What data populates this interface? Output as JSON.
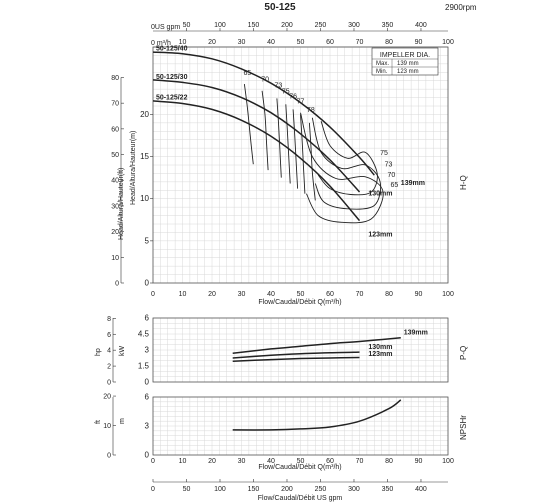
{
  "chart_data": {
    "type": "line",
    "title": "50-125",
    "speed": "2900rpm",
    "flow_axis": {
      "label": "Flow/Caudal/Débit Q(m³/h)",
      "unit_label": "0  m³/h",
      "ticks": [
        "0",
        "10",
        "20",
        "30",
        "40",
        "50",
        "60",
        "70",
        "80",
        "90",
        "100"
      ],
      "range": [
        0,
        100
      ]
    },
    "usgpm_axis": {
      "label": "Flow/Caudal/Débit  US gpm",
      "unit_label": "0US gpm",
      "ticks": [
        "50",
        "100",
        "150",
        "200",
        "250",
        "300",
        "350",
        "400"
      ]
    },
    "hq": {
      "side_label": "H-Q",
      "ylabel_m": "Head/Altura/Hauteur(m)",
      "ylabel_ft": "Head/Altura/Hauteur(ft)",
      "m_ticks": [
        "0",
        "5",
        "10",
        "15",
        "20"
      ],
      "ft_ticks": [
        "0",
        "10",
        "20",
        "30",
        "40",
        "50",
        "60",
        "70",
        "80"
      ],
      "ylim_m": [
        0,
        25
      ],
      "series": [
        {
          "name": "50-125/40",
          "diameter": "139mm",
          "x": [
            0,
            10,
            20,
            30,
            40,
            50,
            60,
            70,
            75
          ],
          "y": [
            27.4,
            27.2,
            26.6,
            25.4,
            23.7,
            21.4,
            18.5,
            14.9,
            12.8
          ]
        },
        {
          "name": "50-125/30",
          "diameter": "130mm",
          "x": [
            0,
            10,
            20,
            30,
            40,
            50,
            60,
            70
          ],
          "y": [
            24.1,
            23.8,
            23.2,
            22.0,
            20.2,
            17.7,
            14.6,
            10.8
          ]
        },
        {
          "name": "50-125/22",
          "diameter": "123mm",
          "x": [
            0,
            10,
            20,
            30,
            40,
            50,
            60,
            70
          ],
          "y": [
            21.6,
            21.3,
            20.6,
            19.3,
            17.4,
            14.8,
            11.5,
            7.4
          ]
        }
      ],
      "efficiency_labels_left": [
        "65",
        "70",
        "73",
        "75",
        "76",
        "77",
        "78"
      ],
      "efficiency_labels_right": [
        "75",
        "73",
        "70",
        "65"
      ],
      "impeller_box": {
        "title": "IMPELLER DIA.",
        "max_label": "Max.",
        "max_value": "139 mm",
        "min_label": "Min.",
        "min_value": "123 mm"
      }
    },
    "pq": {
      "side_label": "P-Q",
      "ylabel_hp": "hp",
      "ylabel_kw": "kW",
      "hp_ticks": [
        "0",
        "2",
        "4",
        "6",
        "8"
      ],
      "kw_ticks": [
        "0",
        "1.5",
        "3",
        "4.5",
        "6"
      ],
      "series": [
        {
          "name": "139mm",
          "x": [
            27,
            40,
            50,
            60,
            70,
            84
          ],
          "y": [
            2.7,
            3.1,
            3.35,
            3.6,
            3.8,
            4.15
          ]
        },
        {
          "name": "130mm",
          "x": [
            27,
            40,
            50,
            60,
            70
          ],
          "y": [
            2.25,
            2.5,
            2.65,
            2.75,
            2.8
          ]
        },
        {
          "name": "123mm",
          "x": [
            27,
            40,
            50,
            60,
            70
          ],
          "y": [
            1.95,
            2.1,
            2.2,
            2.25,
            2.3
          ]
        }
      ]
    },
    "npsh": {
      "side_label": "NPSHr",
      "ylabel_ft": "ft",
      "ylabel_m": "m",
      "ft_ticks": [
        "0",
        "10",
        "20"
      ],
      "m_ticks": [
        "0",
        "3",
        "6"
      ],
      "series": [
        {
          "name": "NPSHr",
          "x": [
            27,
            40,
            50,
            60,
            70,
            80,
            84
          ],
          "y": [
            2.6,
            2.6,
            2.7,
            2.9,
            3.5,
            4.8,
            5.7
          ]
        }
      ]
    },
    "grid": true
  }
}
